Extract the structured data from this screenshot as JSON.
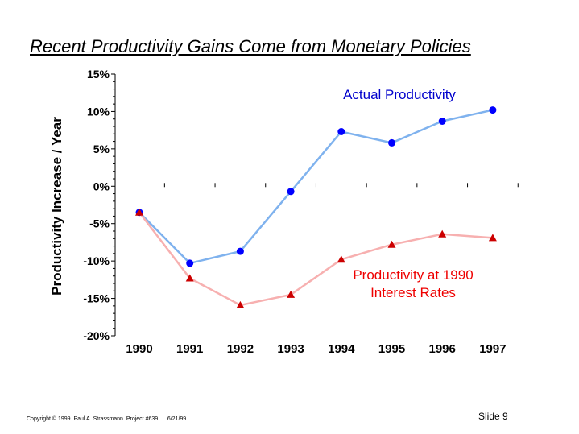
{
  "slide": {
    "title": "Recent Productivity Gains Come from Monetary Policies",
    "footer_copyright": "Copyright © 1999.  Paul A. Strassmann. Project #639.",
    "footer_date": "6/21/99",
    "slide_number": "Slide 9"
  },
  "chart_data": {
    "type": "line",
    "title": "Recent Productivity Gains Come from Monetary Policies",
    "ylabel": "Productivity Increase  / Year",
    "xlabel": "",
    "categories": [
      "1990",
      "1991",
      "1992",
      "1993",
      "1994",
      "1995",
      "1996",
      "1997"
    ],
    "ylim": [
      -20,
      15
    ],
    "yticks": [
      15,
      10,
      5,
      0,
      -5,
      -10,
      -15,
      -20
    ],
    "ytick_labels": [
      "15%",
      "10%",
      "5%",
      "0%",
      "-5%",
      "-10%",
      "-15%",
      "-20%"
    ],
    "series": [
      {
        "name": "Actual Productivity",
        "label_lines": [
          "Actual Productivity"
        ],
        "values": [
          -3.5,
          -10.3,
          -8.7,
          -0.7,
          7.3,
          5.8,
          8.7,
          10.2
        ],
        "marker": "circle",
        "line_color": "#7fb2ee",
        "marker_color": "#0000ff",
        "label_color": "#0000cc"
      },
      {
        "name": "Productivity at 1990 Interest Rates",
        "label_lines": [
          "Productivity at 1990",
          "Interest Rates"
        ],
        "values": [
          -3.5,
          -12.3,
          -15.9,
          -14.5,
          -9.8,
          -7.8,
          -6.4,
          -6.9
        ],
        "marker": "triangle",
        "line_color": "#f7b0b0",
        "marker_color": "#cc0000",
        "label_color": "#ee0000"
      }
    ],
    "grid": false,
    "legend": "inline labels"
  }
}
